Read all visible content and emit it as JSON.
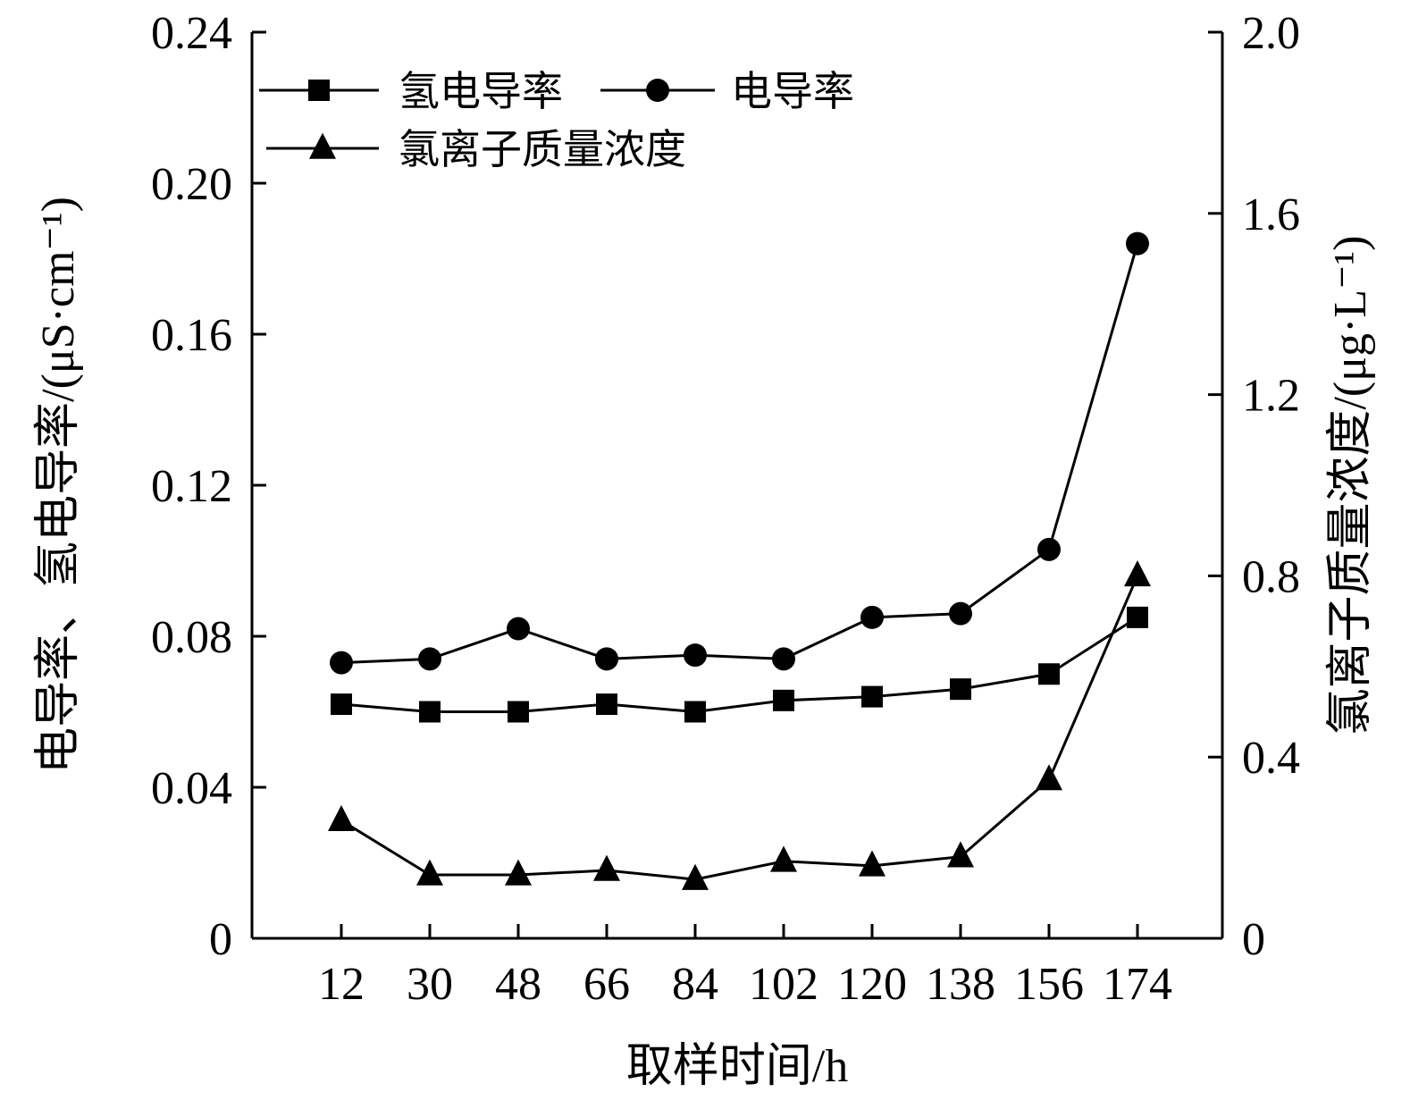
{
  "chart_data": {
    "type": "line",
    "x": [
      12,
      30,
      48,
      66,
      84,
      102,
      120,
      138,
      156,
      174
    ],
    "xlabel": "取样时间/h",
    "ylabel_left": "电导率、氢电导率/(μS·cm⁻¹)",
    "ylabel_right": "氯离子质量浓度/(μg·L⁻¹)",
    "ylim_left": [
      0,
      0.24
    ],
    "ylim_right": [
      0,
      2.0
    ],
    "yticks_left": [
      "0",
      "0.04",
      "0.08",
      "0.12",
      "0.16",
      "0.20",
      "0.24"
    ],
    "yticks_right": [
      "0",
      "0.4",
      "0.8",
      "1.2",
      "1.6",
      "2.0"
    ],
    "grid": false,
    "legend_position": "top-left",
    "series": [
      {
        "name": "氢电导率",
        "axis": "left",
        "marker": "square",
        "values": [
          0.062,
          0.06,
          0.06,
          0.062,
          0.06,
          0.063,
          0.064,
          0.066,
          0.07,
          0.085
        ]
      },
      {
        "name": "电导率",
        "axis": "left",
        "marker": "circle",
        "values": [
          0.073,
          0.074,
          0.082,
          0.074,
          0.075,
          0.074,
          0.085,
          0.086,
          0.103,
          0.184
        ]
      },
      {
        "name": "氯离子质量浓度",
        "axis": "right",
        "marker": "triangle",
        "values": [
          0.26,
          0.14,
          0.14,
          0.15,
          0.13,
          0.17,
          0.16,
          0.18,
          0.35,
          0.8
        ]
      }
    ]
  }
}
